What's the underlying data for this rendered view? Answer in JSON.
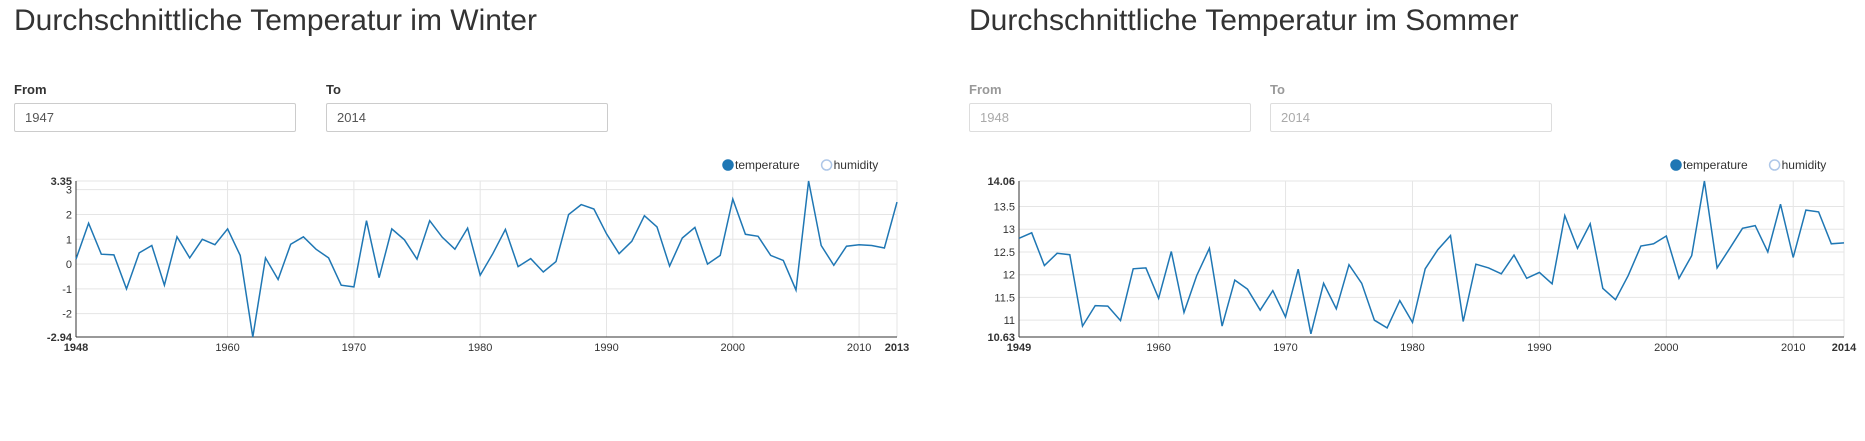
{
  "chart_data": [
    {
      "type": "line",
      "title": "Durchschnittliche Temperatur im Winter",
      "from_label": "From",
      "to_label": "To",
      "from_value": "1947",
      "to_value": "2014",
      "legend": [
        {
          "name": "temperature",
          "active": true
        },
        {
          "name": "humidity",
          "active": false
        }
      ],
      "xlim": [
        1948,
        2013
      ],
      "ylim": [
        -2.94,
        3.35
      ],
      "y_min_label": "-2.94",
      "y_max_label": "3.35",
      "x_min_label": "1948",
      "x_max_label": "2013",
      "x_ticks": [
        1960,
        1970,
        1980,
        1990,
        2000,
        2010
      ],
      "y_ticks": [
        -2,
        -1,
        0,
        1,
        2,
        3
      ],
      "grid": true,
      "series": [
        {
          "name": "temperature",
          "x": [
            1948,
            1949,
            1950,
            1951,
            1952,
            1953,
            1954,
            1955,
            1956,
            1957,
            1958,
            1959,
            1960,
            1961,
            1962,
            1963,
            1964,
            1965,
            1966,
            1967,
            1968,
            1969,
            1970,
            1971,
            1972,
            1973,
            1974,
            1975,
            1976,
            1977,
            1978,
            1979,
            1980,
            1981,
            1982,
            1983,
            1984,
            1985,
            1986,
            1987,
            1988,
            1989,
            1990,
            1991,
            1992,
            1993,
            1994,
            1995,
            1996,
            1997,
            1998,
            1999,
            2000,
            2001,
            2002,
            2003,
            2004,
            2005,
            2006,
            2007,
            2008,
            2009,
            2010,
            2011,
            2012,
            2013
          ],
          "values": [
            0.2,
            1.65,
            0.4,
            0.37,
            -1.0,
            0.45,
            0.75,
            -0.85,
            1.1,
            0.25,
            1.0,
            0.78,
            1.42,
            0.35,
            -2.94,
            0.25,
            -0.62,
            0.8,
            1.1,
            0.6,
            0.25,
            -0.85,
            -0.92,
            1.75,
            -0.55,
            1.42,
            0.98,
            0.2,
            1.75,
            1.08,
            0.6,
            1.45,
            -0.45,
            0.42,
            1.4,
            -0.1,
            0.22,
            -0.32,
            0.1,
            2.0,
            2.4,
            2.22,
            1.22,
            0.42,
            0.92,
            1.95,
            1.5,
            -0.08,
            1.05,
            1.48,
            0.0,
            0.35,
            2.62,
            1.2,
            1.12,
            0.35,
            0.15,
            -1.05,
            3.35,
            0.75,
            -0.05,
            0.72,
            0.78,
            0.75,
            0.65,
            2.5
          ]
        }
      ]
    },
    {
      "type": "line",
      "title": "Durchschnittliche Temperatur im Sommer",
      "from_label": "From",
      "to_label": "To",
      "from_value": "1948",
      "to_value": "2014",
      "legend": [
        {
          "name": "temperature",
          "active": true
        },
        {
          "name": "humidity",
          "active": false
        }
      ],
      "xlim": [
        1949,
        2014
      ],
      "ylim": [
        10.63,
        14.06
      ],
      "y_min_label": "10.63",
      "y_max_label": "14.06",
      "x_min_label": "1949",
      "x_max_label": "2014",
      "x_ticks": [
        1960,
        1970,
        1980,
        1990,
        2000,
        2010
      ],
      "y_ticks": [
        11,
        11.5,
        12,
        12.5,
        13,
        13.5
      ],
      "grid": true,
      "series": [
        {
          "name": "temperature",
          "x": [
            1949,
            1950,
            1951,
            1952,
            1953,
            1954,
            1955,
            1956,
            1957,
            1958,
            1959,
            1960,
            1961,
            1962,
            1963,
            1964,
            1965,
            1966,
            1967,
            1968,
            1969,
            1970,
            1971,
            1972,
            1973,
            1974,
            1975,
            1976,
            1977,
            1978,
            1979,
            1980,
            1981,
            1982,
            1983,
            1984,
            1985,
            1986,
            1987,
            1988,
            1989,
            1990,
            1991,
            1992,
            1993,
            1994,
            1995,
            1996,
            1997,
            1998,
            1999,
            2000,
            2001,
            2002,
            2003,
            2004,
            2005,
            2006,
            2007,
            2008,
            2009,
            2010,
            2011,
            2012,
            2013,
            2014
          ],
          "values": [
            12.8,
            12.92,
            12.2,
            12.47,
            12.44,
            10.87,
            11.32,
            11.31,
            10.99,
            12.13,
            12.15,
            11.48,
            12.51,
            11.17,
            11.98,
            12.58,
            10.87,
            11.88,
            11.68,
            11.22,
            11.65,
            11.07,
            12.12,
            10.7,
            11.81,
            11.25,
            12.22,
            11.81,
            11.0,
            10.83,
            11.43,
            10.95,
            12.13,
            12.55,
            12.86,
            10.97,
            12.23,
            12.15,
            12.02,
            12.43,
            11.92,
            12.05,
            11.8,
            13.3,
            12.58,
            13.12,
            11.7,
            11.45,
            11.98,
            12.63,
            12.68,
            12.85,
            11.92,
            12.42,
            14.06,
            12.15,
            12.58,
            13.02,
            13.08,
            12.5,
            13.55,
            12.38,
            13.42,
            13.38,
            12.68,
            12.7
          ]
        }
      ]
    }
  ]
}
